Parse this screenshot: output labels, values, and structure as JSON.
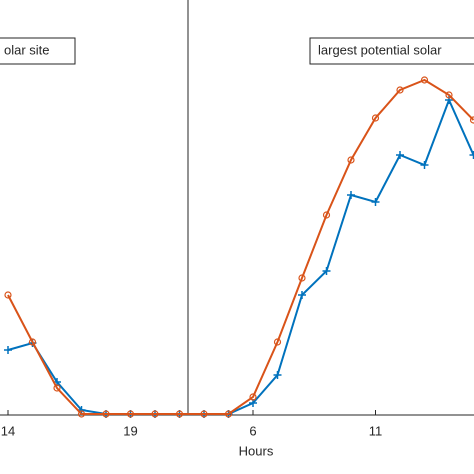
{
  "chart_data": {
    "type": "line",
    "xlabel": "Hours",
    "annotations": [
      "olar site",
      "largest potential solar"
    ],
    "categories": [
      "14",
      null,
      null,
      null,
      null,
      "19",
      null,
      null,
      null,
      null,
      "6",
      null,
      null,
      null,
      null,
      "11",
      null,
      null,
      null,
      null
    ],
    "series": [
      {
        "color": "#0072bd",
        "marker": "plus",
        "values": [
          16,
          17.75,
          8,
          1,
          0,
          0,
          0,
          0,
          0,
          0,
          2.75,
          9.75,
          29.75,
          35.75,
          54.75,
          53,
          64.75,
          62.25,
          78.5,
          64.75
        ]
      },
      {
        "color": "#d95319",
        "marker": "circle",
        "values": [
          29.75,
          18,
          6.5,
          0,
          0,
          0,
          0,
          0,
          0,
          0,
          4.25,
          18,
          34,
          49.75,
          63.5,
          74,
          81,
          83.5,
          79.75,
          73.5
        ]
      }
    ],
    "ylim": [
      0,
      100
    ]
  }
}
